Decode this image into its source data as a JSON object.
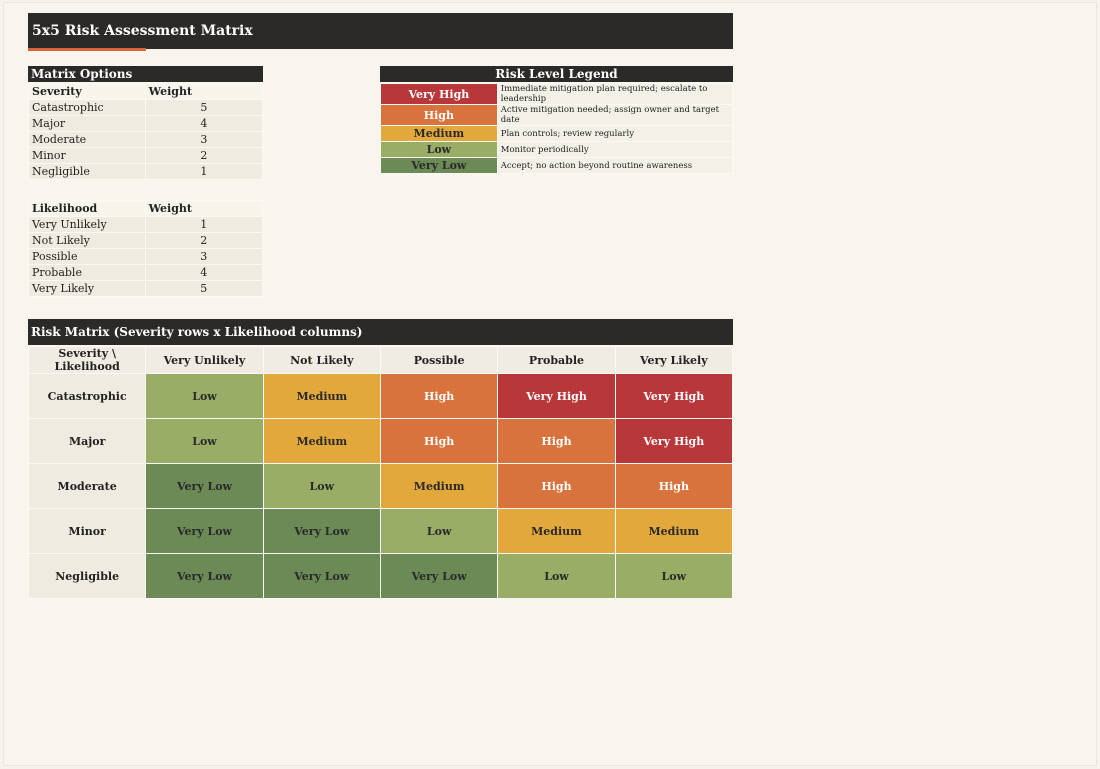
{
  "title": "5x5 Risk Assessment Matrix",
  "options": {
    "header": "Matrix Options",
    "severity": {
      "label": "Severity",
      "weight_label": "Weight",
      "items": [
        {
          "name": "Catastrophic",
          "weight": "5"
        },
        {
          "name": "Major",
          "weight": "4"
        },
        {
          "name": "Moderate",
          "weight": "3"
        },
        {
          "name": "Minor",
          "weight": "2"
        },
        {
          "name": "Negligible",
          "weight": "1"
        }
      ]
    },
    "likelihood": {
      "label": "Likelihood",
      "weight_label": "Weight",
      "items": [
        {
          "name": "Very Unlikely",
          "weight": "1"
        },
        {
          "name": "Not Likely",
          "weight": "2"
        },
        {
          "name": "Possible",
          "weight": "3"
        },
        {
          "name": "Probable",
          "weight": "4"
        },
        {
          "name": "Very Likely",
          "weight": "5"
        }
      ]
    }
  },
  "legend": {
    "header": "Risk Level Legend",
    "items": [
      {
        "level": "Very High",
        "desc": "Immediate mitigation plan required; escalate to leadership"
      },
      {
        "level": "High",
        "desc": "Active mitigation needed; assign owner and target date"
      },
      {
        "level": "Medium",
        "desc": "Plan controls; review regularly"
      },
      {
        "level": "Low",
        "desc": "Monitor periodically"
      },
      {
        "level": "Very Low",
        "desc": "Accept; no action beyond routine awareness"
      }
    ]
  },
  "matrix": {
    "title": "Risk Matrix (Severity rows x Likelihood columns)",
    "corner": "Severity \\ Likelihood",
    "columns": [
      "Very Unlikely",
      "Not Likely",
      "Possible",
      "Probable",
      "Very Likely"
    ],
    "rows": [
      {
        "label": "Catastrophic",
        "cells": [
          "Low",
          "Medium",
          "High",
          "Very High",
          "Very High"
        ]
      },
      {
        "label": "Major",
        "cells": [
          "Low",
          "Medium",
          "High",
          "High",
          "Very High"
        ]
      },
      {
        "label": "Moderate",
        "cells": [
          "Very Low",
          "Low",
          "Medium",
          "High",
          "High"
        ]
      },
      {
        "label": "Minor",
        "cells": [
          "Very Low",
          "Very Low",
          "Low",
          "Medium",
          "Medium"
        ]
      },
      {
        "label": "Negligible",
        "cells": [
          "Very Low",
          "Very Low",
          "Very Low",
          "Low",
          "Low"
        ]
      }
    ]
  },
  "colors": {
    "Very High": {
      "bg": "#b8373a",
      "fg": "#ffffff"
    },
    "High": {
      "bg": "#d8733d",
      "fg": "#ffffff"
    },
    "Medium": {
      "bg": "#e3a83b",
      "fg": "#2a2a2a"
    },
    "Low": {
      "bg": "#9aad66",
      "fg": "#2a2a2a"
    },
    "Very Low": {
      "bg": "#6b8a56",
      "fg": "#2a2a2a"
    }
  }
}
